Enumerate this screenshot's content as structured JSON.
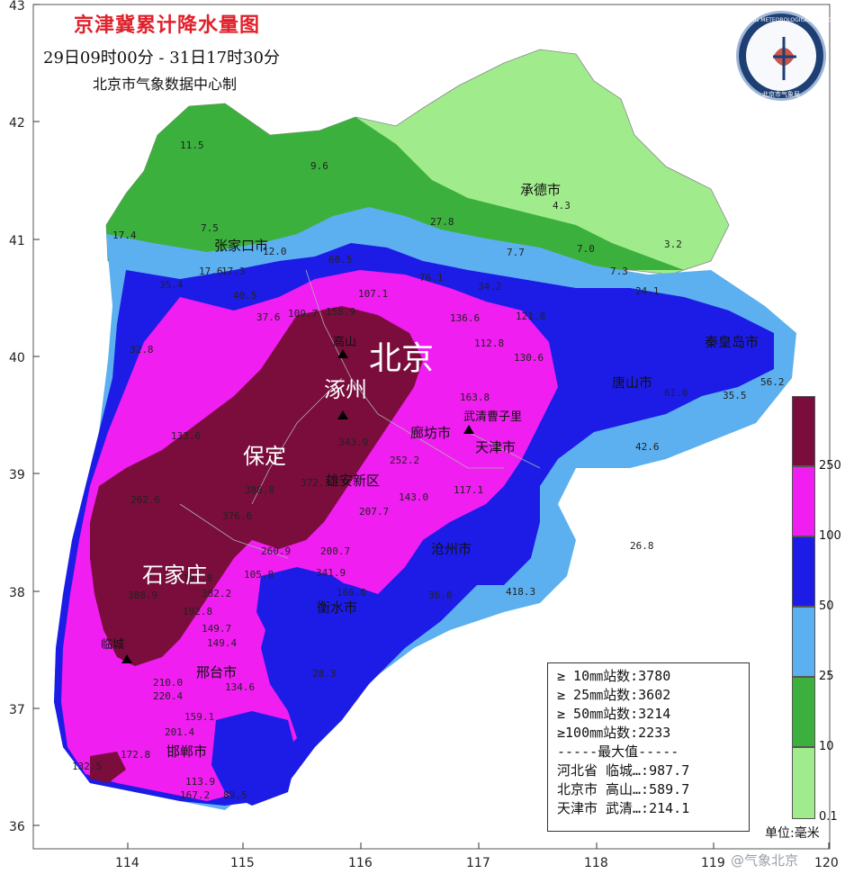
{
  "map": {
    "title": "京津冀累计降水量图",
    "period": "29日09时00分  -  31日17时30分",
    "producer": "北京市气象数据中心制",
    "logo_text": "BEIJING METEOROLOGICAL SERVICE",
    "logo_caption": "北京市气象局",
    "x_ticks": [
      "114",
      "115",
      "116",
      "117",
      "118",
      "119",
      "120"
    ],
    "y_ticks": [
      "43",
      "42",
      "41",
      "40",
      "39",
      "38",
      "37",
      "36"
    ],
    "cities": {
      "beijing": "北京",
      "zhuozhou": "涿州",
      "baoding": "保定",
      "shijiazhuang": "石家庄",
      "chengde": "承德市",
      "zhangjiakou": "张家口市",
      "qinhuangdao": "秦皇岛市",
      "tangshan": "唐山市",
      "langfang": "廊坊市",
      "tianjin": "天津市",
      "xiongan": "雄安新区",
      "cangzhou": "沧州市",
      "hengshui": "衡水市",
      "xingtai": "邢台市",
      "handan": "邯郸市",
      "wuqing": "武清曹子里",
      "gaoshan": "高山",
      "lincheng": "临城"
    },
    "station_values": [
      "11.5",
      "9.6",
      "4.3",
      "27.8",
      "17.4",
      "7.5",
      "12.0",
      "17.6",
      "17.3",
      "7.7",
      "7.0",
      "3.2",
      "7.3",
      "35.4",
      "60.5",
      "34.2",
      "24.1",
      "40.5",
      "37.6",
      "109.7",
      "107.1",
      "158.9",
      "76.1",
      "32.8",
      "136.6",
      "121.8",
      "112.8",
      "130.6",
      "56.2",
      "61.0",
      "35.5",
      "133.6",
      "343.9",
      "252.2",
      "163.8",
      "42.6",
      "26.8",
      "262.6",
      "372.3",
      "143.0",
      "117.1",
      "207.7",
      "388.8",
      "376.6",
      "260.9",
      "200.7",
      "197.8",
      "382.2",
      "341.9",
      "166.0",
      "105.8",
      "388.9",
      "192.8",
      "149.7",
      "149.4",
      "210.0",
      "220.4",
      "134.6",
      "159.1",
      "201.4",
      "172.8",
      "167.2",
      "113.9",
      "132.5",
      "89.5",
      "28.3",
      "36.0",
      "418.3"
    ],
    "stats": {
      "s10": "≥ 10㎜站数:3780",
      "s25": "≥ 25㎜站数:3602",
      "s50": "≥ 50㎜站数:3214",
      "s100": "≥100㎜站数:2233",
      "sep": "-----最大值-----",
      "hebei": "河北省 临城…:987.7",
      "beijing": "北京市 高山…:589.7",
      "tianjin": "天津市 武清…:214.1"
    },
    "legend": {
      "labels": [
        "250",
        "100",
        "50",
        "25",
        "10",
        "0.1"
      ],
      "colors": [
        "#7a0d3c",
        "#f01ef0",
        "#1c1ce6",
        "#5cb0f0",
        "#3cb03c",
        "#a0ec8c"
      ],
      "unit": "单位:毫米"
    },
    "watermark": "@气象北京"
  }
}
